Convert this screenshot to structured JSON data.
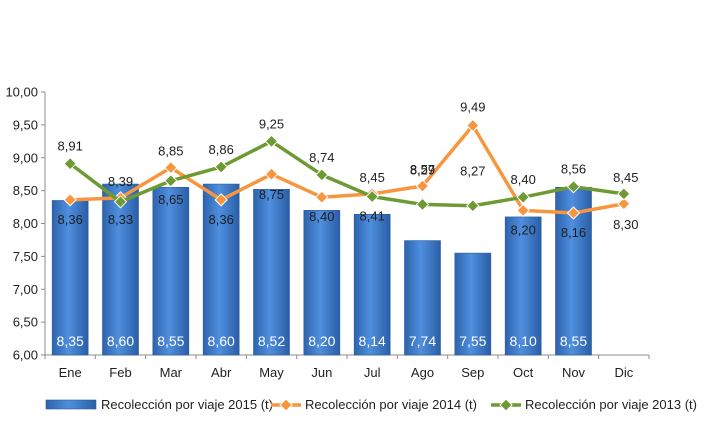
{
  "chart_data": {
    "type": "bar",
    "categories": [
      "Ene",
      "Feb",
      "Mar",
      "Abr",
      "May",
      "Jun",
      "Jul",
      "Ago",
      "Sep",
      "Oct",
      "Nov",
      "Dic"
    ],
    "y_ticks": [
      "6,00",
      "6,50",
      "7,00",
      "7,50",
      "8,00",
      "8,50",
      "9,00",
      "9,50",
      "10,00"
    ],
    "ylim": [
      6,
      10
    ],
    "grid": false,
    "legend_position": "bottom",
    "series": [
      {
        "name": "Recolección por viaje 2015 (t)",
        "kind": "bar",
        "color": "#3f7fd0",
        "values": [
          8.35,
          8.6,
          8.55,
          8.6,
          8.52,
          8.2,
          8.14,
          7.74,
          7.55,
          8.1,
          8.55,
          null
        ],
        "labels": [
          "8,35",
          "8,60",
          "8,55",
          "8,60",
          "8,52",
          "8,20",
          "8,14",
          "7,74",
          "7,55",
          "8,10",
          "8,55",
          ""
        ]
      },
      {
        "name": "Recolección por viaje 2014 (t)",
        "kind": "line",
        "color": "#f7963e",
        "values": [
          8.36,
          8.39,
          8.85,
          8.36,
          8.75,
          8.4,
          8.45,
          8.57,
          9.49,
          8.2,
          8.16,
          8.3
        ],
        "labels": [
          "8,36",
          "8,39",
          "8,85",
          "8,36",
          "8,75",
          "8,40",
          "8,45",
          "8,57",
          "9,49",
          "8,20",
          "8,16",
          "8,30"
        ]
      },
      {
        "name": "Recolección por viaje 2013 (t)",
        "kind": "line",
        "color": "#6e9a34",
        "values": [
          8.91,
          8.33,
          8.65,
          8.86,
          9.25,
          8.74,
          8.41,
          8.29,
          8.27,
          8.4,
          8.56,
          8.45
        ],
        "labels": [
          "8,91",
          "8,33",
          "8,65",
          "8,86",
          "9,25",
          "8,74",
          "8,41",
          "8,29",
          "8,27",
          "8,40",
          "8,56",
          "8,45"
        ]
      }
    ]
  }
}
